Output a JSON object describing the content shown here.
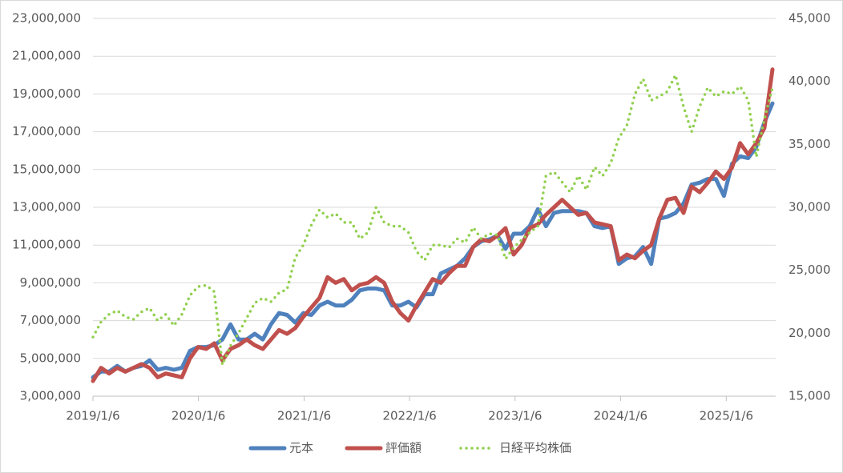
{
  "chart_data": {
    "type": "line",
    "x": [
      "2019/1/6",
      "2019/2/3",
      "2019/3/3",
      "2019/3/31",
      "2019/4/28",
      "2019/5/26",
      "2019/6/23",
      "2019/7/21",
      "2019/8/18",
      "2019/9/15",
      "2019/10/13",
      "2019/11/10",
      "2019/12/8",
      "2020/1/5",
      "2020/2/2",
      "2020/3/1",
      "2020/3/29",
      "2020/4/26",
      "2020/5/24",
      "2020/6/21",
      "2020/7/19",
      "2020/8/16",
      "2020/9/13",
      "2020/10/11",
      "2020/11/8",
      "2020/12/6",
      "2021/1/3",
      "2021/1/31",
      "2021/2/28",
      "2021/3/28",
      "2021/4/25",
      "2021/5/23",
      "2021/6/20",
      "2021/7/18",
      "2021/8/15",
      "2021/9/12",
      "2021/10/10",
      "2021/11/7",
      "2021/12/5",
      "2022/1/2",
      "2022/1/30",
      "2022/2/27",
      "2022/3/27",
      "2022/4/24",
      "2022/5/22",
      "2022/6/19",
      "2022/7/17",
      "2022/8/14",
      "2022/9/11",
      "2022/10/9",
      "2022/11/6",
      "2022/12/4",
      "2023/1/1",
      "2023/1/29",
      "2023/2/26",
      "2023/3/26",
      "2023/4/23",
      "2023/5/21",
      "2023/6/18",
      "2023/7/16",
      "2023/8/13",
      "2023/9/10",
      "2023/10/8",
      "2023/11/5",
      "2023/12/3",
      "2023/12/31",
      "2024/1/28",
      "2024/2/25",
      "2024/3/24",
      "2024/4/21",
      "2024/5/19",
      "2024/6/16",
      "2024/7/14",
      "2024/8/11",
      "2024/9/8",
      "2024/10/6",
      "2024/11/3",
      "2024/12/1",
      "2024/12/29",
      "2025/1/26",
      "2025/2/23",
      "2025/3/23",
      "2025/4/20",
      "2025/5/18",
      "2025/6/15"
    ],
    "xlim": [
      "2019/1/6",
      "2025/6/15"
    ],
    "xticks": [
      "2019/1/6",
      "2020/1/6",
      "2021/1/6",
      "2022/1/6",
      "2023/1/6",
      "2024/1/6",
      "2025/1/6"
    ],
    "ylim": [
      3000000,
      23000000
    ],
    "yticks": [
      {
        "value": 3000000,
        "label": "3,000,000"
      },
      {
        "value": 5000000,
        "label": "5,000,000"
      },
      {
        "value": 7000000,
        "label": "7,000,000"
      },
      {
        "value": 9000000,
        "label": "9,000,000"
      },
      {
        "value": 11000000,
        "label": "11,000,000"
      },
      {
        "value": 13000000,
        "label": "13,000,000"
      },
      {
        "value": 15000000,
        "label": "15,000,000"
      },
      {
        "value": 17000000,
        "label": "17,000,000"
      },
      {
        "value": 19000000,
        "label": "19,000,000"
      },
      {
        "value": 21000000,
        "label": "21,000,000"
      },
      {
        "value": 23000000,
        "label": "23,000,000"
      }
    ],
    "y2lim": [
      15000,
      45000
    ],
    "y2ticks": [
      {
        "value": 15000,
        "label": "15,000"
      },
      {
        "value": 20000,
        "label": "20,000"
      },
      {
        "value": 25000,
        "label": "25,000"
      },
      {
        "value": 30000,
        "label": "30,000"
      },
      {
        "value": 35000,
        "label": "35,000"
      },
      {
        "value": 40000,
        "label": "40,000"
      },
      {
        "value": 45000,
        "label": "45,000"
      }
    ],
    "grid": true,
    "legend": "bottom",
    "series": [
      {
        "name": "元本",
        "color": "#4f81bd",
        "style": "solid",
        "values": [
          4000000,
          4300000,
          4300000,
          4600000,
          4300000,
          4500000,
          4600000,
          4900000,
          4400000,
          4500000,
          4400000,
          4500000,
          5400000,
          5600000,
          5600000,
          5700000,
          6000000,
          6800000,
          6000000,
          6000000,
          6300000,
          6000000,
          6800000,
          7400000,
          7300000,
          6900000,
          7400000,
          7300000,
          7800000,
          8000000,
          7800000,
          7800000,
          8100000,
          8600000,
          8700000,
          8700000,
          8600000,
          7800000,
          7800000,
          8000000,
          7700000,
          8400000,
          8400000,
          9500000,
          9700000,
          9900000,
          10300000,
          10900000,
          11200000,
          11300000,
          11500000,
          10800000,
          11600000,
          11600000,
          12000000,
          12900000,
          12000000,
          12700000,
          12800000,
          12800000,
          12800000,
          12700000,
          12000000,
          11900000,
          12000000,
          10000000,
          10300000,
          10400000,
          10900000,
          10000000,
          12400000,
          12500000,
          12700000,
          13200000,
          14200000,
          14300000,
          14500000,
          14500000,
          13600000,
          15300000,
          15700000,
          15600000,
          16200000,
          17500000,
          18500000
        ]
      },
      {
        "name": "評価額",
        "color": "#c0504d",
        "style": "solid",
        "values": [
          3800000,
          4500000,
          4200000,
          4500000,
          4300000,
          4500000,
          4700000,
          4500000,
          4000000,
          4200000,
          4100000,
          4000000,
          5000000,
          5600000,
          5500000,
          5800000,
          4900000,
          5500000,
          5700000,
          6000000,
          5700000,
          5500000,
          6000000,
          6500000,
          6300000,
          6600000,
          7200000,
          7700000,
          8200000,
          9300000,
          9000000,
          9200000,
          8600000,
          8900000,
          9000000,
          9300000,
          9000000,
          8000000,
          7400000,
          7000000,
          7800000,
          8500000,
          9200000,
          9000000,
          9500000,
          9900000,
          9900000,
          10900000,
          11300000,
          11200000,
          11500000,
          11900000,
          10500000,
          11000000,
          11900000,
          12100000,
          12600000,
          13000000,
          13400000,
          13000000,
          12600000,
          12700000,
          12200000,
          12100000,
          12000000,
          10200000,
          10500000,
          10300000,
          10700000,
          11000000,
          12400000,
          13400000,
          13500000,
          12700000,
          14100000,
          13800000,
          14300000,
          14900000,
          14500000,
          15100000,
          16400000,
          15800000,
          16400000,
          17200000,
          20300000
        ]
      },
      {
        "name": "日経平均株価",
        "color": "#92d050",
        "style": "dotted",
        "axis": "y2",
        "values": [
          19700,
          20900,
          21500,
          21800,
          21300,
          21100,
          21700,
          22000,
          21000,
          21500,
          20600,
          21500,
          23000,
          23700,
          23800,
          23300,
          17500,
          19000,
          20000,
          21200,
          22400,
          22800,
          22500,
          23200,
          23500,
          26000,
          27000,
          28600,
          29800,
          29200,
          29500,
          28800,
          28800,
          27500,
          28000,
          30000,
          28800,
          28500,
          28500,
          28000,
          26500,
          25800,
          27000,
          27000,
          26800,
          27500,
          27200,
          28400,
          27500,
          27900,
          27800,
          25900,
          26800,
          27400,
          28000,
          28500,
          32500,
          32800,
          32000,
          31200,
          32500,
          31400,
          33200,
          32500,
          33500,
          35500,
          36500,
          39000,
          40200,
          38500,
          38800,
          39200,
          40500,
          38000,
          36000,
          38000,
          39500,
          38800,
          39200,
          39000,
          39600,
          38500,
          34000,
          37000,
          39500
        ]
      }
    ]
  }
}
